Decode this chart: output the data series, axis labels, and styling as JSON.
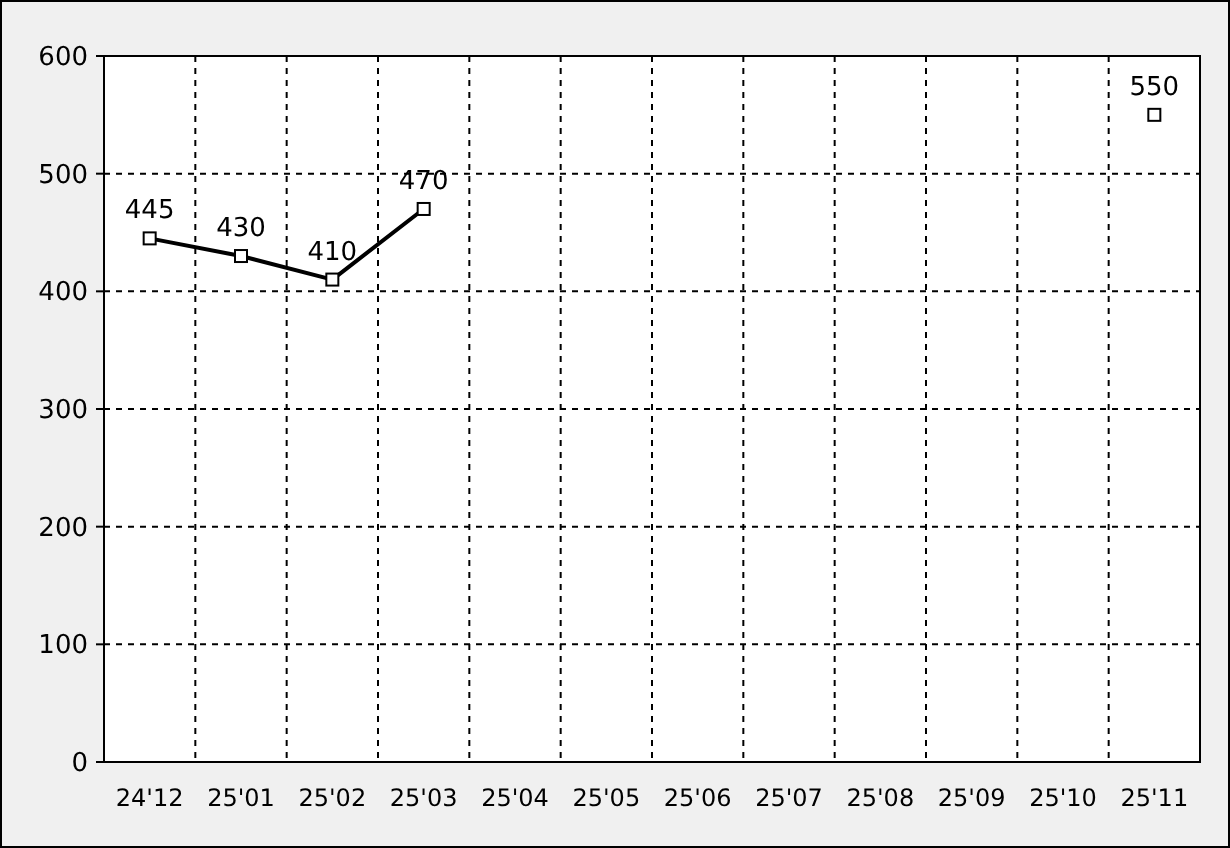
{
  "chart_data": {
    "type": "line",
    "categories": [
      "24'12",
      "25'01",
      "25'02",
      "25'03",
      "25'04",
      "25'05",
      "25'06",
      "25'07",
      "25'08",
      "25'09",
      "25'10",
      "25'11"
    ],
    "series": [
      {
        "color": "#000000",
        "values": [
          445,
          430,
          410,
          470,
          null,
          null,
          null,
          null,
          null,
          null,
          null,
          550
        ]
      }
    ],
    "ylim": [
      0,
      600
    ],
    "yticks": [
      0,
      100,
      200,
      300,
      400,
      500,
      600
    ],
    "grid": true,
    "marker": "square",
    "line_style": "solid",
    "data_labels": true
  }
}
